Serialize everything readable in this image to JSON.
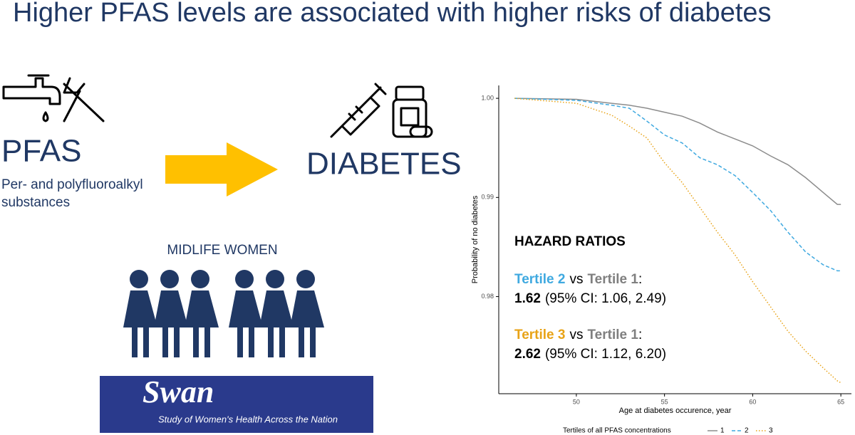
{
  "title": "Higher PFAS levels are associated with higher risks of diabetes",
  "exposure": {
    "label": "PFAS",
    "description": [
      "Per- and polyfluoroalkyl",
      "substances"
    ]
  },
  "outcome": {
    "label": "DIABETES"
  },
  "population": {
    "label": "MIDLIFE WOMEN",
    "logo_title": "Swan",
    "logo_subtitle": "Study of Women's Health Across the Nation"
  },
  "hazard": {
    "title": "HAZARD RATIOS",
    "rows": [
      {
        "group": "Tertile 2",
        "vs": "vs",
        "reference": "Tertile 1",
        "colon": ":",
        "ratio": "1.62",
        "ci": "(95% CI: 1.06, 2.49)"
      },
      {
        "group": "Tertile 3",
        "vs": "vs",
        "reference": "Tertile 1",
        "colon": ":",
        "ratio": "2.62",
        "ci": "(95% CI: 1.12, 6.20)"
      }
    ]
  },
  "chart_data": {
    "type": "line",
    "x_label": "Age at diabetes occurence, year",
    "y_label": "Probability of no diabetes",
    "legend_title": "Tertiles of all PFAS concentrations",
    "x": [
      46.5,
      50,
      52,
      53,
      54,
      55,
      56,
      57,
      58,
      59,
      60,
      61,
      62,
      63,
      64,
      64.8,
      65
    ],
    "series": [
      {
        "name": "1",
        "color": "#8c8c8c",
        "dash": "solid",
        "values": [
          1.0,
          0.9999,
          0.9995,
          0.9993,
          0.999,
          0.9986,
          0.9982,
          0.9975,
          0.9966,
          0.9959,
          0.9952,
          0.9942,
          0.9933,
          0.992,
          0.9905,
          0.9893,
          0.9893
        ]
      },
      {
        "name": "2",
        "color": "#3fa9e0",
        "dash": "dashed",
        "values": [
          1.0,
          0.9998,
          0.9993,
          0.999,
          0.9977,
          0.9963,
          0.9955,
          0.994,
          0.9933,
          0.9922,
          0.9905,
          0.9887,
          0.9865,
          0.9845,
          0.9832,
          0.9826,
          0.9826
        ]
      },
      {
        "name": "3",
        "color": "#e8a317",
        "dash": "dotted",
        "values": [
          1.0,
          0.9995,
          0.9983,
          0.9972,
          0.996,
          0.9935,
          0.9915,
          0.989,
          0.9865,
          0.9842,
          0.9815,
          0.979,
          0.9765,
          0.9745,
          0.9728,
          0.9715,
          0.9713
        ]
      }
    ],
    "xlim": [
      45.6,
      65.6
    ],
    "xticks": [
      50,
      55,
      60,
      65
    ],
    "ylim": [
      0.9702,
      1.0013
    ],
    "yticks": [
      0.98,
      0.99,
      {
        "value": 1,
        "label": "1.00"
      }
    ],
    "grid": false,
    "legend": "bottom"
  }
}
